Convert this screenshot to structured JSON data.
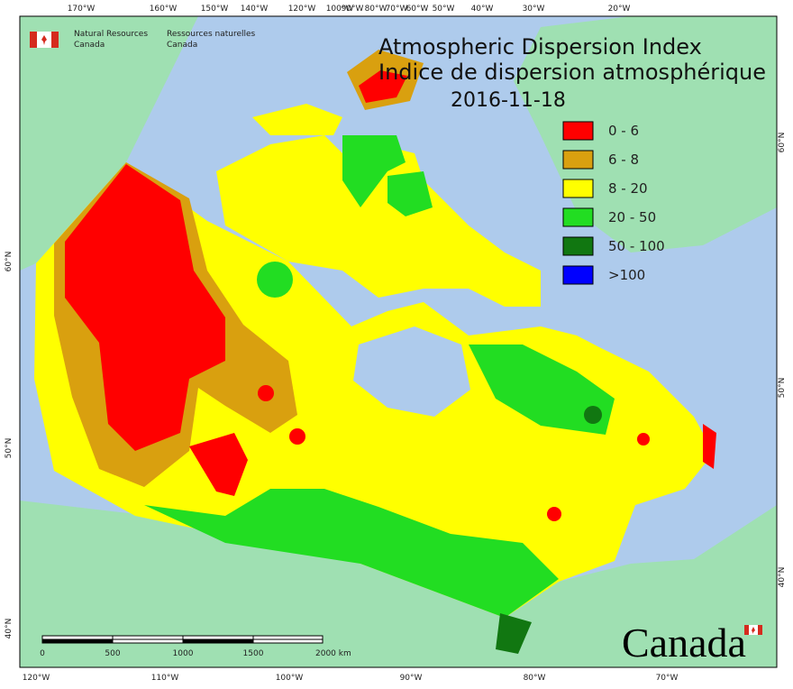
{
  "header": {
    "agency_en": [
      "Natural Resources",
      "Canada"
    ],
    "agency_fr": [
      "Ressources naturelles",
      "Canada"
    ]
  },
  "title": {
    "line1": "Atmospheric Dispersion Index",
    "line2": "Indice de dispersion atmosphérique",
    "date": "2016-11-18"
  },
  "legend": [
    {
      "label": "0 - 6",
      "color": "#ff0000"
    },
    {
      "label": "6 - 8",
      "color": "#d9a00f"
    },
    {
      "label": "8 - 20",
      "color": "#ffff00"
    },
    {
      "label": "20 - 50",
      "color": "#22dd22"
    },
    {
      "label": "50 - 100",
      "color": "#117711"
    },
    {
      "label": ">100",
      "color": "#0000ff"
    }
  ],
  "axes": {
    "top": [
      "170°W",
      "160°W",
      "150°W",
      "140°W",
      "120°W",
      "100°W",
      "90°W",
      "80°W",
      "70°W",
      "60°W",
      "50°W",
      "40°W",
      "30°W",
      "20°W"
    ],
    "bottom": [
      "120°W",
      "110°W",
      "100°W",
      "90°W",
      "80°W",
      "70°W"
    ],
    "left": [
      "60°N",
      "50°N",
      "40°N"
    ],
    "right": [
      "60°N",
      "50°N",
      "40°N"
    ]
  },
  "scale_bar": {
    "labels": [
      "0",
      "500",
      "1000",
      "1500",
      "2000 km"
    ]
  },
  "wordmark": "Canada"
}
